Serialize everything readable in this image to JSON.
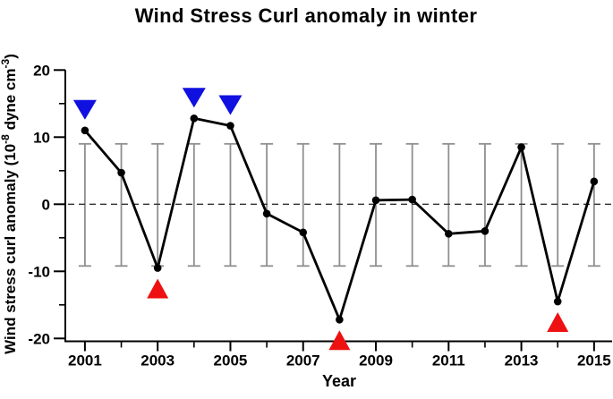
{
  "figure": {
    "background": "#ffffff"
  },
  "colors": {
    "line": "#000000",
    "marker": "#000000",
    "error_bar": "#8f8f8f",
    "blue_triangle": "#1010e0",
    "red_triangle": "#ee1111",
    "zero_line": "#333333",
    "axis": "#000000",
    "text": "#000000"
  },
  "chart_data": {
    "type": "line",
    "title": "Wind Stress Curl anomaly in winter",
    "xlabel": "Year",
    "ylabel": "Wind stress curl anomaly (10⁻⁸ dyne cm⁻³)",
    "ylabel_segments": [
      {
        "text": "Wind stress curl anomaly (10",
        "sup": false
      },
      {
        "text": "-8",
        "sup": true
      },
      {
        "text": " dyne cm",
        "sup": false
      },
      {
        "text": "-3",
        "sup": true
      },
      {
        "text": ")",
        "sup": false
      }
    ],
    "x": [
      2001,
      2002,
      2003,
      2004,
      2005,
      2006,
      2007,
      2008,
      2009,
      2010,
      2011,
      2012,
      2013,
      2014,
      2015
    ],
    "values": [
      11.0,
      4.7,
      -9.5,
      12.8,
      11.7,
      -1.4,
      -4.2,
      -17.2,
      0.6,
      0.7,
      -4.4,
      -4.0,
      8.5,
      -14.5,
      3.4
    ],
    "error_band": {
      "top": 9.0,
      "bottom": -9.2,
      "applies_to_all_years": true
    },
    "blue_down_triangle_years": [
      2001,
      2004,
      2005
    ],
    "red_up_triangle_years": [
      2003,
      2008,
      2014
    ],
    "ylim": [
      -20,
      20
    ],
    "xlim_years": [
      2001,
      2015
    ],
    "yticks_major": [
      20,
      10,
      0,
      -10,
      -20
    ],
    "yticks_minor": [
      15,
      5,
      -5,
      -15
    ],
    "ytick_labels": [
      "20",
      "10",
      "0",
      "-10",
      "-20"
    ],
    "xticks_major": [
      2001,
      2003,
      2005,
      2007,
      2009,
      2011,
      2013,
      2015
    ],
    "xticks_minor": [
      2002,
      2004,
      2006,
      2008,
      2010,
      2012,
      2014
    ],
    "xtick_labels": [
      "2001",
      "2003",
      "2005",
      "2007",
      "2009",
      "2011",
      "2013",
      "2015"
    ],
    "zero_line_style": "dashed",
    "grid": "off",
    "legend": "none"
  }
}
